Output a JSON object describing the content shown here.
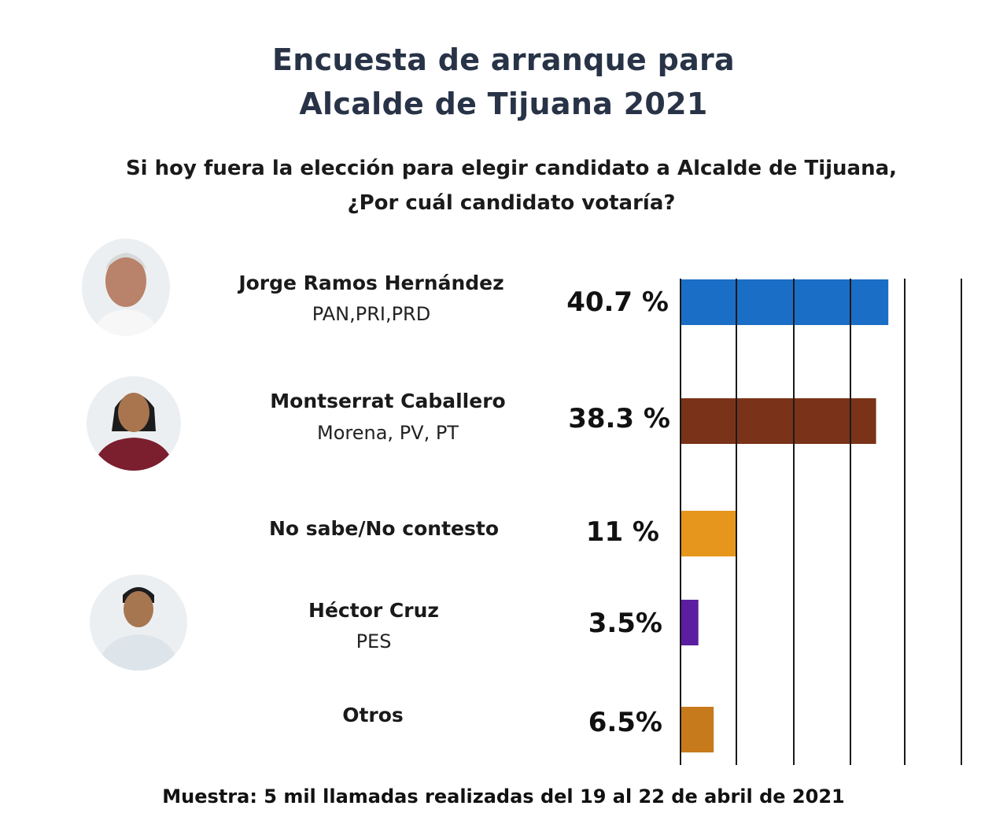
{
  "title_lines": [
    "Encuesta de arranque para",
    "Alcalde de Tijuana 2021"
  ],
  "question_lines": [
    "Si hoy fuera la elección para elegir candidato a Alcalde de Tijuana,",
    "¿Por cuál candidato votaría?"
  ],
  "candidates": [
    {
      "name": "Jorge Ramos Hernández",
      "party": "PAN,PRI,PRD",
      "value_label": "40.7 %"
    },
    {
      "name": "Montserrat Caballero",
      "party": "Morena, PV, PT",
      "value_label": "38.3 %"
    },
    {
      "name": "No sabe/No contesto",
      "party": "",
      "value_label": "11 %"
    },
    {
      "name": "Héctor Cruz",
      "party": "PES",
      "value_label": "3.5%"
    },
    {
      "name": "Otros",
      "party": "",
      "value_label": "6.5%"
    }
  ],
  "footer": "Muestra: 5 mil llamadas realizadas  del 19 al 22 de abril de 2021",
  "chart_data": {
    "type": "bar",
    "orientation": "horizontal",
    "categories": [
      "Jorge Ramos Hernández",
      "Montserrat Caballero",
      "No sabe/No contesto",
      "Héctor Cruz",
      "Otros"
    ],
    "values": [
      40.7,
      38.3,
      11,
      3.5,
      6.5
    ],
    "data_labels": [
      "40.7 %",
      "38.3 %",
      "11 %",
      "3.5%",
      "6.5%"
    ],
    "colors": [
      "#1b6ec5",
      "#7a3318",
      "#e6961c",
      "#5b1ea0",
      "#c77a1c"
    ],
    "xlim": [
      0,
      55
    ],
    "grid": true,
    "title": "",
    "xlabel": "",
    "ylabel": ""
  }
}
